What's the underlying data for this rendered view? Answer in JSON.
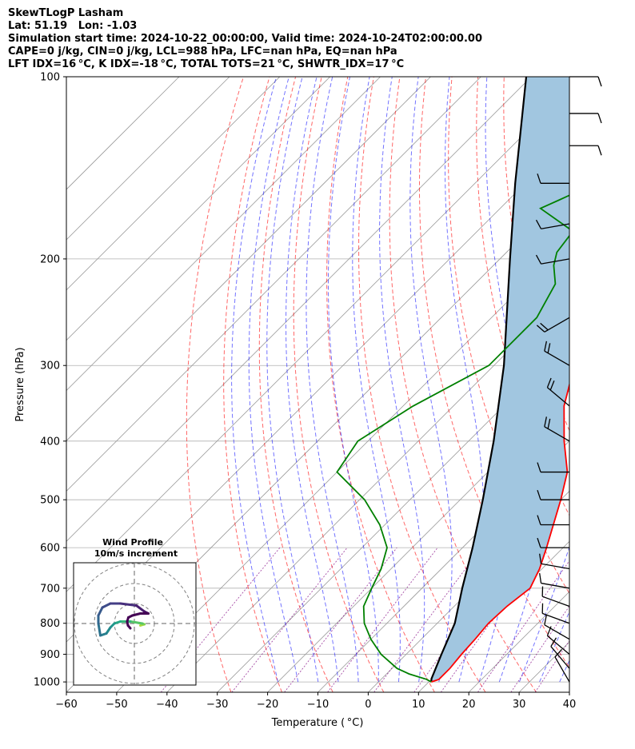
{
  "titles": {
    "line1": "SkewTLogP Lasham",
    "line2": "Lat: 51.19   Lon: -1.03",
    "line3": "Simulation start time: 2024-10-22_00:00:00, Valid time: 2024-10-24T02:00:00.00",
    "line4": "CAPE=0 j/kg, CIN=0 j/kg, LCL=988 hPa, LFC=nan hPa, EQ=nan hPa",
    "line5": "LFT IDX=16 °C, K IDX=-18 °C, TOTAL TOTS=21 °C, SHWTR_IDX=17 °C"
  },
  "chart_data": {
    "type": "skewt",
    "xlabel": "Temperature ( °C)",
    "ylabel": "Pressure (hPa)",
    "xlim": [
      -60,
      40
    ],
    "ylim": [
      1040,
      100
    ],
    "x_ticks": [
      -60,
      -50,
      -40,
      -30,
      -20,
      -10,
      0,
      10,
      20,
      30,
      40
    ],
    "x_tick_labels": [
      "−60",
      "−50",
      "−40",
      "−30",
      "−20",
      "−10",
      "0",
      "10",
      "20",
      "30",
      "40"
    ],
    "y_ticks": [
      1000,
      900,
      800,
      700,
      600,
      500,
      400,
      300,
      200,
      100
    ],
    "y_tick_labels": [
      "1000",
      "900",
      "800",
      "700",
      "600",
      "500",
      "400",
      "300",
      "200",
      "100"
    ],
    "grid": true,
    "colors": {
      "temperature": "#ff0000",
      "dewpoint": "#008000",
      "parcel": "#000000",
      "fill": "#a1c6e0",
      "dry_adiabat": "#ff0000",
      "moist_adiabat": "#0000ff",
      "mixing_ratio": "#800080",
      "isotherm": "#999999"
    },
    "temperature": {
      "pressure": [
        1000,
        990,
        950,
        900,
        850,
        800,
        750,
        700,
        650,
        600,
        550,
        500,
        450,
        400,
        350,
        300,
        250,
        205,
        200,
        187,
        170,
        150,
        130,
        110,
        100
      ],
      "value": [
        10.5,
        11.5,
        11.5,
        11.0,
        10.7,
        10.2,
        10.5,
        11.5,
        9.5,
        6.7,
        3.5,
        0.0,
        -4.2,
        -11.0,
        -18.0,
        -24.0,
        -31.0,
        -41.0,
        -43.0,
        -44.0,
        -41.0,
        -40.0,
        -42.0,
        -46.0,
        -49.0
      ]
    },
    "dewpoint": {
      "pressure": [
        1000,
        990,
        970,
        950,
        900,
        850,
        800,
        750,
        700,
        650,
        600,
        550,
        500,
        450,
        400,
        350,
        300,
        250,
        220,
        205,
        200,
        195,
        180,
        165,
        160,
        150,
        140,
        130,
        120,
        100
      ],
      "value": [
        10.5,
        9.0,
        4.5,
        1.0,
        -5.0,
        -10.0,
        -14.5,
        -18.0,
        -20.0,
        -22.0,
        -25.0,
        -31.0,
        -39.0,
        -50.0,
        -52.0,
        -48.0,
        -41.0,
        -41.0,
        -44.0,
        -48.0,
        -49.0,
        -50.0,
        -51.0,
        -62.0,
        -60.0,
        -56.0,
        -60.0,
        -60.0,
        -62.0,
        -62.0
      ]
    },
    "parcel": {
      "pressure": [
        1000,
        988,
        900,
        800,
        700,
        600,
        500,
        400,
        300,
        200,
        150,
        100
      ],
      "value": [
        10.5,
        9.9,
        7.0,
        3.5,
        -2.0,
        -8.0,
        -15.5,
        -25.0,
        -38.0,
        -58.0,
        -72.0,
        -91.0
      ]
    },
    "wind_barbs": [
      {
        "pressure": 1000,
        "speed_kt": 10,
        "direction_deg": 330
      },
      {
        "pressure": 950,
        "speed_kt": 10,
        "direction_deg": 320
      },
      {
        "pressure": 900,
        "speed_kt": 10,
        "direction_deg": 310
      },
      {
        "pressure": 850,
        "speed_kt": 10,
        "direction_deg": 300
      },
      {
        "pressure": 800,
        "speed_kt": 10,
        "direction_deg": 290
      },
      {
        "pressure": 750,
        "speed_kt": 10,
        "direction_deg": 290
      },
      {
        "pressure": 700,
        "speed_kt": 10,
        "direction_deg": 280
      },
      {
        "pressure": 650,
        "speed_kt": 10,
        "direction_deg": 280
      },
      {
        "pressure": 600,
        "speed_kt": 10,
        "direction_deg": 270
      },
      {
        "pressure": 550,
        "speed_kt": 10,
        "direction_deg": 270
      },
      {
        "pressure": 500,
        "speed_kt": 10,
        "direction_deg": 270
      },
      {
        "pressure": 450,
        "speed_kt": 10,
        "direction_deg": 270
      },
      {
        "pressure": 400,
        "speed_kt": 20,
        "direction_deg": 300
      },
      {
        "pressure": 350,
        "speed_kt": 20,
        "direction_deg": 310
      },
      {
        "pressure": 300,
        "speed_kt": 20,
        "direction_deg": 300
      },
      {
        "pressure": 250,
        "speed_kt": 20,
        "direction_deg": 240
      },
      {
        "pressure": 200,
        "speed_kt": 10,
        "direction_deg": 260
      },
      {
        "pressure": 175,
        "speed_kt": 10,
        "direction_deg": 260
      },
      {
        "pressure": 150,
        "speed_kt": 10,
        "direction_deg": 270
      },
      {
        "pressure": 130,
        "speed_kt": 10,
        "direction_deg": 90
      },
      {
        "pressure": 115,
        "speed_kt": 10,
        "direction_deg": 90
      },
      {
        "pressure": 100,
        "speed_kt": 10,
        "direction_deg": 90
      }
    ],
    "inset": {
      "title_line1": "Wind Profile",
      "title_line2": "10m/s increment",
      "rings": [
        10,
        20,
        30
      ],
      "hodograph_u": [
        1.5,
        2.5,
        2.0,
        -1.0,
        -3.5,
        -5.0,
        -6.0,
        -7.0,
        -8.5,
        -9.0,
        -9.0,
        -8.0,
        -6.0,
        -3.5,
        0.5,
        2.5,
        3.5,
        1.5,
        -0.5,
        -1.5,
        -1.8,
        -1.6,
        -1.0
      ],
      "hodograph_v": [
        -0.5,
        -0.2,
        0.0,
        0.5,
        0.5,
        0.0,
        -1.0,
        -2.5,
        -3.0,
        0.0,
        2.0,
        4.0,
        5.0,
        5.0,
        4.5,
        3.0,
        2.5,
        2.5,
        2.0,
        1.5,
        0.5,
        -0.5,
        -1.2
      ]
    }
  }
}
